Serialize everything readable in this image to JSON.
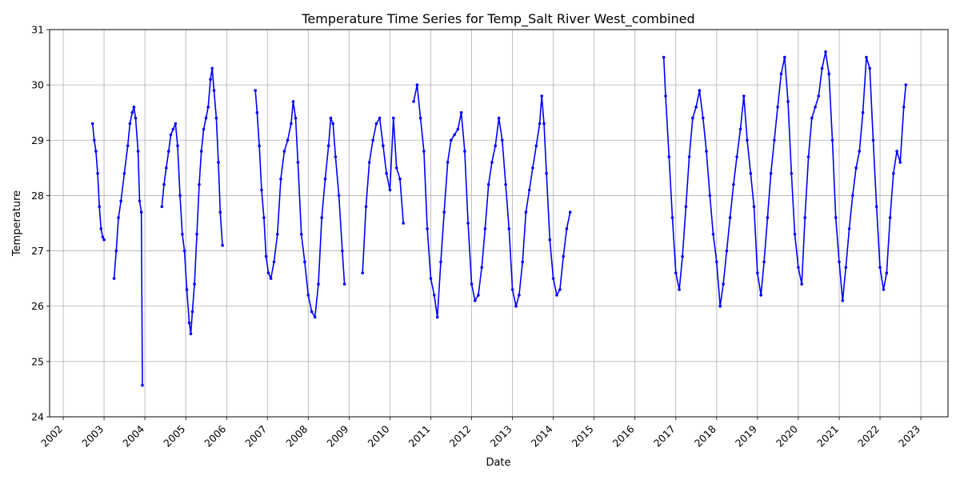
{
  "chart_data": {
    "type": "scatter",
    "title": "Temperature Time Series for Temp_Salt River West_combined",
    "xlabel": "Date",
    "ylabel": "Temperature",
    "xlim": [
      "2001-09-01",
      "2023-09-01"
    ],
    "ylim": [
      24,
      31
    ],
    "x_ticks": [
      "2002",
      "2003",
      "2004",
      "2005",
      "2006",
      "2007",
      "2008",
      "2009",
      "2010",
      "2011",
      "2012",
      "2013",
      "2014",
      "2015",
      "2016",
      "2017",
      "2018",
      "2019",
      "2020",
      "2021",
      "2022",
      "2023"
    ],
    "y_ticks": [
      "24",
      "25",
      "26",
      "27",
      "28",
      "29",
      "30",
      "31"
    ],
    "grid": true,
    "series": [
      {
        "color": "#0000ff",
        "marker": "dot-with-line",
        "points": [
          [
            "2002-09-20",
            29.3
          ],
          [
            "2002-10-05",
            29.0
          ],
          [
            "2002-10-20",
            28.8
          ],
          [
            "2002-11-05",
            28.4
          ],
          [
            "2002-11-20",
            27.8
          ],
          [
            "2002-12-05",
            27.4
          ],
          [
            "2002-12-20",
            27.25
          ],
          [
            "2003-01-01",
            27.2
          ],
          [
            "2003-04-01",
            26.5
          ],
          [
            "2003-04-20",
            27.0
          ],
          [
            "2003-05-10",
            27.6
          ],
          [
            "2003-06-01",
            27.9
          ],
          [
            "2003-07-01",
            28.4
          ],
          [
            "2003-08-01",
            28.9
          ],
          [
            "2003-08-20",
            29.3
          ],
          [
            "2003-09-10",
            29.5
          ],
          [
            "2003-09-25",
            29.6
          ],
          [
            "2003-10-10",
            29.4
          ],
          [
            "2003-11-01",
            28.8
          ],
          [
            "2003-11-15",
            27.9
          ],
          [
            "2003-12-01",
            27.7
          ],
          [
            "2003-12-10",
            24.57
          ],
          [
            "2004-06-01",
            27.8
          ],
          [
            "2004-06-20",
            28.2
          ],
          [
            "2004-07-10",
            28.5
          ],
          [
            "2004-08-01",
            28.8
          ],
          [
            "2004-08-20",
            29.1
          ],
          [
            "2004-09-10",
            29.2
          ],
          [
            "2004-10-01",
            29.3
          ],
          [
            "2004-10-20",
            28.9
          ],
          [
            "2004-11-10",
            28.0
          ],
          [
            "2004-12-01",
            27.3
          ],
          [
            "2004-12-20",
            27.0
          ],
          [
            "2005-01-10",
            26.3
          ],
          [
            "2005-02-01",
            25.7
          ],
          [
            "2005-02-15",
            25.5
          ],
          [
            "2005-03-01",
            25.9
          ],
          [
            "2005-03-20",
            26.4
          ],
          [
            "2005-04-10",
            27.3
          ],
          [
            "2005-05-01",
            28.2
          ],
          [
            "2005-05-20",
            28.8
          ],
          [
            "2005-06-10",
            29.2
          ],
          [
            "2005-07-01",
            29.4
          ],
          [
            "2005-07-20",
            29.6
          ],
          [
            "2005-08-10",
            30.1
          ],
          [
            "2005-08-25",
            30.3
          ],
          [
            "2005-09-10",
            29.9
          ],
          [
            "2005-10-01",
            29.4
          ],
          [
            "2005-10-20",
            28.6
          ],
          [
            "2005-11-05",
            27.7
          ],
          [
            "2005-11-25",
            27.1
          ],
          [
            "2006-09-15",
            29.9
          ],
          [
            "2006-10-01",
            29.5
          ],
          [
            "2006-10-20",
            28.9
          ],
          [
            "2006-11-10",
            28.1
          ],
          [
            "2006-12-01",
            27.6
          ],
          [
            "2006-12-20",
            26.9
          ],
          [
            "2007-01-10",
            26.6
          ],
          [
            "2007-02-01",
            26.5
          ],
          [
            "2007-03-01",
            26.8
          ],
          [
            "2007-04-01",
            27.3
          ],
          [
            "2007-05-01",
            28.3
          ],
          [
            "2007-06-01",
            28.8
          ],
          [
            "2007-07-01",
            29.0
          ],
          [
            "2007-08-01",
            29.3
          ],
          [
            "2007-08-20",
            29.7
          ],
          [
            "2007-09-10",
            29.4
          ],
          [
            "2007-10-01",
            28.6
          ],
          [
            "2007-11-01",
            27.3
          ],
          [
            "2007-12-01",
            26.8
          ],
          [
            "2008-01-01",
            26.2
          ],
          [
            "2008-02-01",
            25.9
          ],
          [
            "2008-03-01",
            25.8
          ],
          [
            "2008-04-01",
            26.4
          ],
          [
            "2008-05-01",
            27.6
          ],
          [
            "2008-06-01",
            28.3
          ],
          [
            "2008-07-01",
            28.9
          ],
          [
            "2008-07-20",
            29.4
          ],
          [
            "2008-08-10",
            29.3
          ],
          [
            "2008-09-01",
            28.7
          ],
          [
            "2008-10-01",
            28.0
          ],
          [
            "2008-11-01",
            27.0
          ],
          [
            "2008-11-20",
            26.4
          ],
          [
            "2009-05-01",
            26.6
          ],
          [
            "2009-06-01",
            27.8
          ],
          [
            "2009-07-01",
            28.6
          ],
          [
            "2009-08-01",
            29.0
          ],
          [
            "2009-09-01",
            29.3
          ],
          [
            "2009-10-01",
            29.4
          ],
          [
            "2009-11-01",
            28.9
          ],
          [
            "2009-12-01",
            28.4
          ],
          [
            "2010-01-01",
            28.1
          ],
          [
            "2010-02-01",
            29.4
          ],
          [
            "2010-03-01",
            28.5
          ],
          [
            "2010-04-01",
            28.3
          ],
          [
            "2010-05-01",
            27.5
          ],
          [
            "2010-08-01",
            29.7
          ],
          [
            "2010-09-01",
            30.0
          ],
          [
            "2010-10-01",
            29.4
          ],
          [
            "2010-11-01",
            28.8
          ],
          [
            "2010-12-01",
            27.4
          ],
          [
            "2011-01-01",
            26.5
          ],
          [
            "2011-02-01",
            26.2
          ],
          [
            "2011-03-01",
            25.8
          ],
          [
            "2011-04-01",
            26.8
          ],
          [
            "2011-05-01",
            27.7
          ],
          [
            "2011-06-01",
            28.6
          ],
          [
            "2011-07-01",
            29.0
          ],
          [
            "2011-08-01",
            29.1
          ],
          [
            "2011-09-01",
            29.2
          ],
          [
            "2011-10-01",
            29.5
          ],
          [
            "2011-11-01",
            28.8
          ],
          [
            "2011-12-01",
            27.5
          ],
          [
            "2012-01-01",
            26.4
          ],
          [
            "2012-02-01",
            26.1
          ],
          [
            "2012-03-01",
            26.2
          ],
          [
            "2012-04-01",
            26.7
          ],
          [
            "2012-05-01",
            27.4
          ],
          [
            "2012-06-01",
            28.2
          ],
          [
            "2012-07-01",
            28.6
          ],
          [
            "2012-08-01",
            28.9
          ],
          [
            "2012-09-01",
            29.4
          ],
          [
            "2012-10-01",
            29.0
          ],
          [
            "2012-11-01",
            28.2
          ],
          [
            "2012-12-01",
            27.4
          ],
          [
            "2013-01-01",
            26.3
          ],
          [
            "2013-02-01",
            26.0
          ],
          [
            "2013-03-01",
            26.2
          ],
          [
            "2013-04-01",
            26.8
          ],
          [
            "2013-05-01",
            27.7
          ],
          [
            "2013-06-01",
            28.1
          ],
          [
            "2013-07-01",
            28.5
          ],
          [
            "2013-08-01",
            28.9
          ],
          [
            "2013-09-01",
            29.3
          ],
          [
            "2013-09-20",
            29.8
          ],
          [
            "2013-10-10",
            29.3
          ],
          [
            "2013-11-01",
            28.4
          ],
          [
            "2013-12-01",
            27.2
          ],
          [
            "2014-01-01",
            26.5
          ],
          [
            "2014-02-01",
            26.2
          ],
          [
            "2014-03-01",
            26.3
          ],
          [
            "2014-04-01",
            26.9
          ],
          [
            "2014-05-01",
            27.4
          ],
          [
            "2014-06-01",
            27.7
          ],
          [
            "2016-09-15",
            30.5
          ],
          [
            "2016-10-01",
            29.8
          ],
          [
            "2016-11-01",
            28.7
          ],
          [
            "2016-12-01",
            27.6
          ],
          [
            "2017-01-01",
            26.6
          ],
          [
            "2017-02-01",
            26.3
          ],
          [
            "2017-03-01",
            26.9
          ],
          [
            "2017-04-01",
            27.8
          ],
          [
            "2017-05-01",
            28.7
          ],
          [
            "2017-06-01",
            29.4
          ],
          [
            "2017-07-01",
            29.6
          ],
          [
            "2017-08-01",
            29.9
          ],
          [
            "2017-09-01",
            29.4
          ],
          [
            "2017-10-01",
            28.8
          ],
          [
            "2017-11-01",
            28.0
          ],
          [
            "2017-12-01",
            27.3
          ],
          [
            "2018-01-01",
            26.8
          ],
          [
            "2018-02-01",
            26.0
          ],
          [
            "2018-03-01",
            26.4
          ],
          [
            "2018-04-01",
            27.0
          ],
          [
            "2018-05-01",
            27.6
          ],
          [
            "2018-06-01",
            28.2
          ],
          [
            "2018-07-01",
            28.7
          ],
          [
            "2018-08-01",
            29.2
          ],
          [
            "2018-09-01",
            29.8
          ],
          [
            "2018-10-01",
            29.0
          ],
          [
            "2018-11-01",
            28.4
          ],
          [
            "2018-12-01",
            27.8
          ],
          [
            "2019-01-01",
            26.6
          ],
          [
            "2019-02-01",
            26.2
          ],
          [
            "2019-03-01",
            26.8
          ],
          [
            "2019-04-01",
            27.6
          ],
          [
            "2019-05-01",
            28.4
          ],
          [
            "2019-06-01",
            29.0
          ],
          [
            "2019-07-01",
            29.6
          ],
          [
            "2019-08-01",
            30.2
          ],
          [
            "2019-09-01",
            30.5
          ],
          [
            "2019-10-01",
            29.7
          ],
          [
            "2019-11-01",
            28.4
          ],
          [
            "2019-12-01",
            27.3
          ],
          [
            "2020-01-01",
            26.7
          ],
          [
            "2020-02-01",
            26.4
          ],
          [
            "2020-03-01",
            27.6
          ],
          [
            "2020-04-01",
            28.7
          ],
          [
            "2020-05-01",
            29.4
          ],
          [
            "2020-06-01",
            29.6
          ],
          [
            "2020-07-01",
            29.8
          ],
          [
            "2020-08-01",
            30.3
          ],
          [
            "2020-09-01",
            30.6
          ],
          [
            "2020-10-01",
            30.2
          ],
          [
            "2020-11-01",
            29.0
          ],
          [
            "2020-12-01",
            27.6
          ],
          [
            "2021-01-01",
            26.8
          ],
          [
            "2021-02-01",
            26.1
          ],
          [
            "2021-03-01",
            26.7
          ],
          [
            "2021-04-01",
            27.4
          ],
          [
            "2021-05-01",
            28.0
          ],
          [
            "2021-06-01",
            28.5
          ],
          [
            "2021-07-01",
            28.8
          ],
          [
            "2021-08-01",
            29.5
          ],
          [
            "2021-09-01",
            30.5
          ],
          [
            "2021-10-01",
            30.3
          ],
          [
            "2021-11-01",
            29.0
          ],
          [
            "2021-12-01",
            27.8
          ],
          [
            "2022-01-01",
            26.7
          ],
          [
            "2022-02-01",
            26.3
          ],
          [
            "2022-03-01",
            26.6
          ],
          [
            "2022-04-01",
            27.6
          ],
          [
            "2022-05-01",
            28.4
          ],
          [
            "2022-06-01",
            28.8
          ],
          [
            "2022-07-01",
            28.6
          ],
          [
            "2022-08-01",
            29.6
          ],
          [
            "2022-08-20",
            30.0
          ]
        ]
      }
    ]
  }
}
